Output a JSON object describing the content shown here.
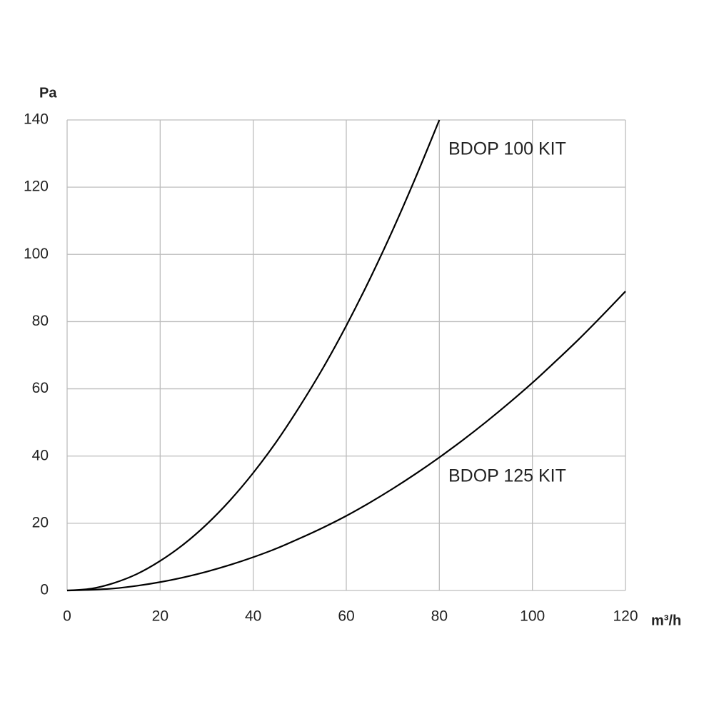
{
  "chart_data": {
    "type": "line",
    "x_label": "m³/h",
    "y_label": "Pa",
    "x": [
      0,
      5,
      10,
      15,
      20,
      25,
      30,
      35,
      40,
      45,
      50,
      55,
      60,
      65,
      70,
      75,
      80,
      85,
      90,
      95,
      100,
      105,
      110,
      115,
      120
    ],
    "series": [
      {
        "name": "BDOP 100 KIT",
        "color": "#000000",
        "values": [
          0,
          0.5,
          2.2,
          4.9,
          8.8,
          13.7,
          19.7,
          26.8,
          35,
          44.3,
          54.8,
          66.2,
          78.8,
          92.5,
          107.3,
          123.2,
          140,
          null,
          null,
          null,
          null,
          null,
          null,
          null,
          null
        ]
      },
      {
        "name": "BDOP 125 KIT",
        "color": "#000000",
        "values": [
          0,
          0.2,
          0.6,
          1.4,
          2.5,
          3.9,
          5.6,
          7.6,
          9.9,
          12.5,
          15.5,
          18.7,
          22.2,
          26.1,
          30.3,
          34.8,
          39.6,
          44.7,
          50.1,
          55.8,
          61.8,
          68.2,
          74.8,
          81.8,
          89
        ]
      }
    ],
    "xlim": [
      0,
      120
    ],
    "xticks": [
      0,
      20,
      40,
      60,
      80,
      100,
      120
    ],
    "ylim": [
      0,
      140
    ],
    "yticks": [
      0,
      20,
      40,
      60,
      80,
      100,
      120,
      140
    ],
    "grid": true
  }
}
